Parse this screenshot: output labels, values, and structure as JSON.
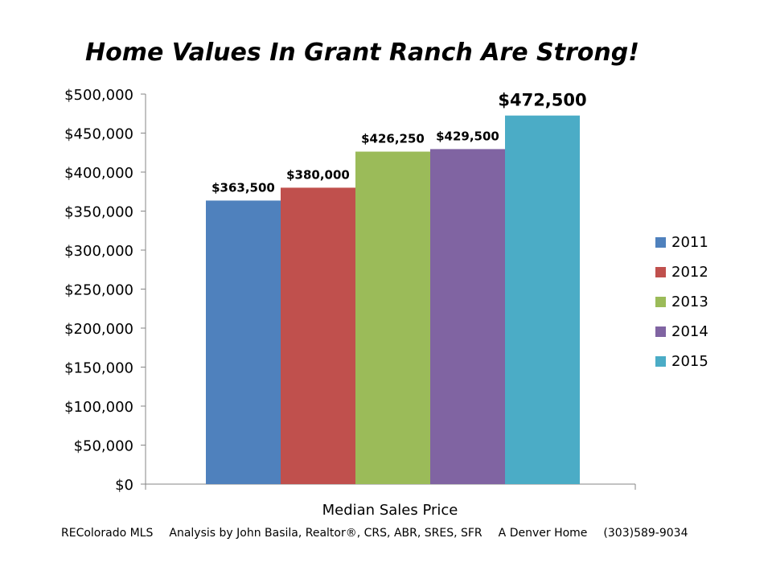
{
  "chart_data": {
    "type": "bar",
    "title": "Home Values In Grant Ranch Are Strong!",
    "xlabel": "Median Sales Price",
    "ylabel": "",
    "categories": [
      "Median Sales Price"
    ],
    "series": [
      {
        "name": "2011",
        "values": [
          363500
        ],
        "label": "$363,500",
        "color": "#4F81BD"
      },
      {
        "name": "2012",
        "values": [
          380000
        ],
        "label": "$380,000",
        "color": "#C0504D"
      },
      {
        "name": "2013",
        "values": [
          426250
        ],
        "label": "$426,250",
        "color": "#9BBB59"
      },
      {
        "name": "2014",
        "values": [
          429500
        ],
        "label": "$429,500",
        "color": "#8064A2"
      },
      {
        "name": "2015",
        "values": [
          472500
        ],
        "label": "$472,500",
        "color": "#4BACC6"
      }
    ],
    "ylim": [
      0,
      500000
    ],
    "yticks": [
      0,
      50000,
      100000,
      150000,
      200000,
      250000,
      300000,
      350000,
      400000,
      450000,
      500000
    ],
    "ytick_labels": [
      "$0",
      "$50,000",
      "$100,000",
      "$150,000",
      "$200,000",
      "$250,000",
      "$300,000",
      "$350,000",
      "$400,000",
      "$450,000",
      "$500,000"
    ],
    "grid": false,
    "legend_position": "right"
  },
  "footer": {
    "source": "REColorado MLS",
    "analysis": "Analysis by John Basila, Realtor®, CRS, ABR, SRES, SFR",
    "company": "A Denver Home",
    "phone": "(303)589-9034"
  }
}
